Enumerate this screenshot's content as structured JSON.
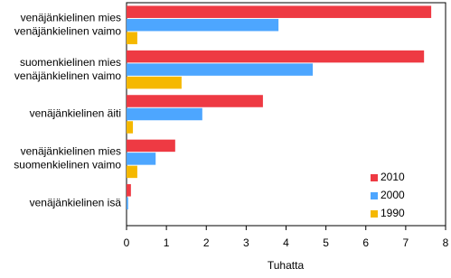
{
  "chart_data": {
    "type": "hbar",
    "categories": [
      [
        "venäjänkielinen mies",
        "venäjänkielinen vaimo"
      ],
      [
        "suomenkielinen mies",
        "venäjänkielinen vaimo"
      ],
      [
        "venäjänkielinen äiti"
      ],
      [
        "venäjänkielinen mies",
        "suomenkielinen vaimo"
      ],
      [
        "venäjänkielinen isä"
      ]
    ],
    "series": [
      {
        "name": "2010",
        "color": "#ee3a43",
        "values": [
          7.64,
          7.46,
          3.42,
          1.22,
          0.11
        ]
      },
      {
        "name": "2000",
        "color": "#4da6ff",
        "values": [
          3.81,
          4.67,
          1.9,
          0.73,
          0.04
        ]
      },
      {
        "name": "1990",
        "color": "#f5b800",
        "values": [
          0.27,
          1.38,
          0.16,
          0.27,
          0.0
        ]
      }
    ],
    "xlabel": "Tuhatta",
    "xlim": [
      0,
      8
    ],
    "xticks": [
      0,
      1,
      2,
      3,
      4,
      5,
      6,
      7,
      8
    ],
    "grid": false,
    "legend": "lower right"
  }
}
